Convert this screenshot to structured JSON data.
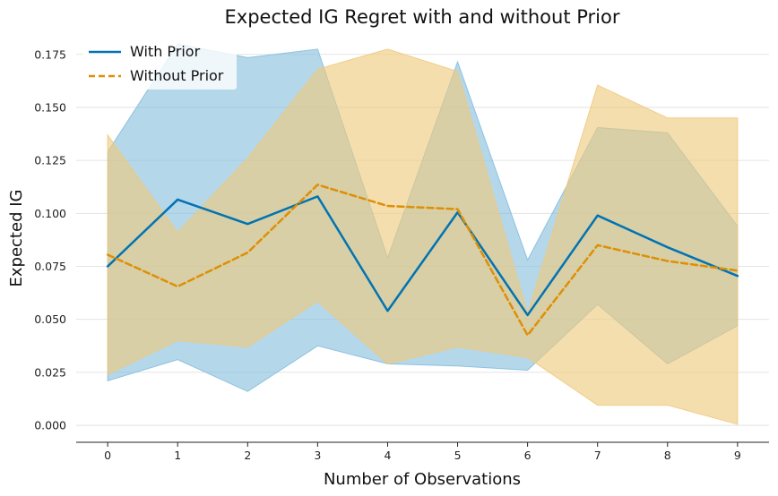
{
  "chart_data": {
    "type": "line",
    "title": "Expected IG Regret with and without Prior",
    "xlabel": "Number of Observations",
    "ylabel": "Expected IG",
    "x": [
      0,
      1,
      2,
      3,
      4,
      5,
      6,
      7,
      8,
      9
    ],
    "xlim": [
      -0.45,
      9.45
    ],
    "ylim": [
      -0.008,
      0.188
    ],
    "yticks": [
      "0.000",
      "0.025",
      "0.050",
      "0.075",
      "0.100",
      "0.125",
      "0.150",
      "0.175"
    ],
    "ytick_values": [
      0,
      0.025,
      0.05,
      0.075,
      0.1,
      0.125,
      0.15,
      0.175
    ],
    "grid": "horizontal",
    "legend_position": "top-left",
    "series": [
      {
        "name": "With Prior",
        "color": "#0173b2",
        "line_style": "solid",
        "values": [
          0.075,
          0.1065,
          0.095,
          0.108,
          0.054,
          0.1005,
          0.052,
          0.099,
          0.084,
          0.0705
        ],
        "lower": [
          0.021,
          0.031,
          0.016,
          0.0375,
          0.029,
          0.028,
          0.026,
          0.057,
          0.029,
          0.047
        ],
        "upper": [
          0.129,
          0.18,
          0.1735,
          0.1775,
          0.079,
          0.1715,
          0.078,
          0.1405,
          0.138,
          0.094
        ]
      },
      {
        "name": "Without Prior",
        "color": "#de8f05",
        "line_style": "dashed",
        "values": [
          0.0805,
          0.0655,
          0.0815,
          0.1135,
          0.1035,
          0.102,
          0.0425,
          0.085,
          0.0775,
          0.073
        ],
        "lower": [
          0.024,
          0.04,
          0.037,
          0.0585,
          0.029,
          0.037,
          0.032,
          0.0095,
          0.0095,
          0.0005
        ],
        "upper": [
          0.137,
          0.091,
          0.126,
          0.168,
          0.1775,
          0.167,
          0.053,
          0.1605,
          0.145,
          0.145
        ]
      }
    ]
  }
}
